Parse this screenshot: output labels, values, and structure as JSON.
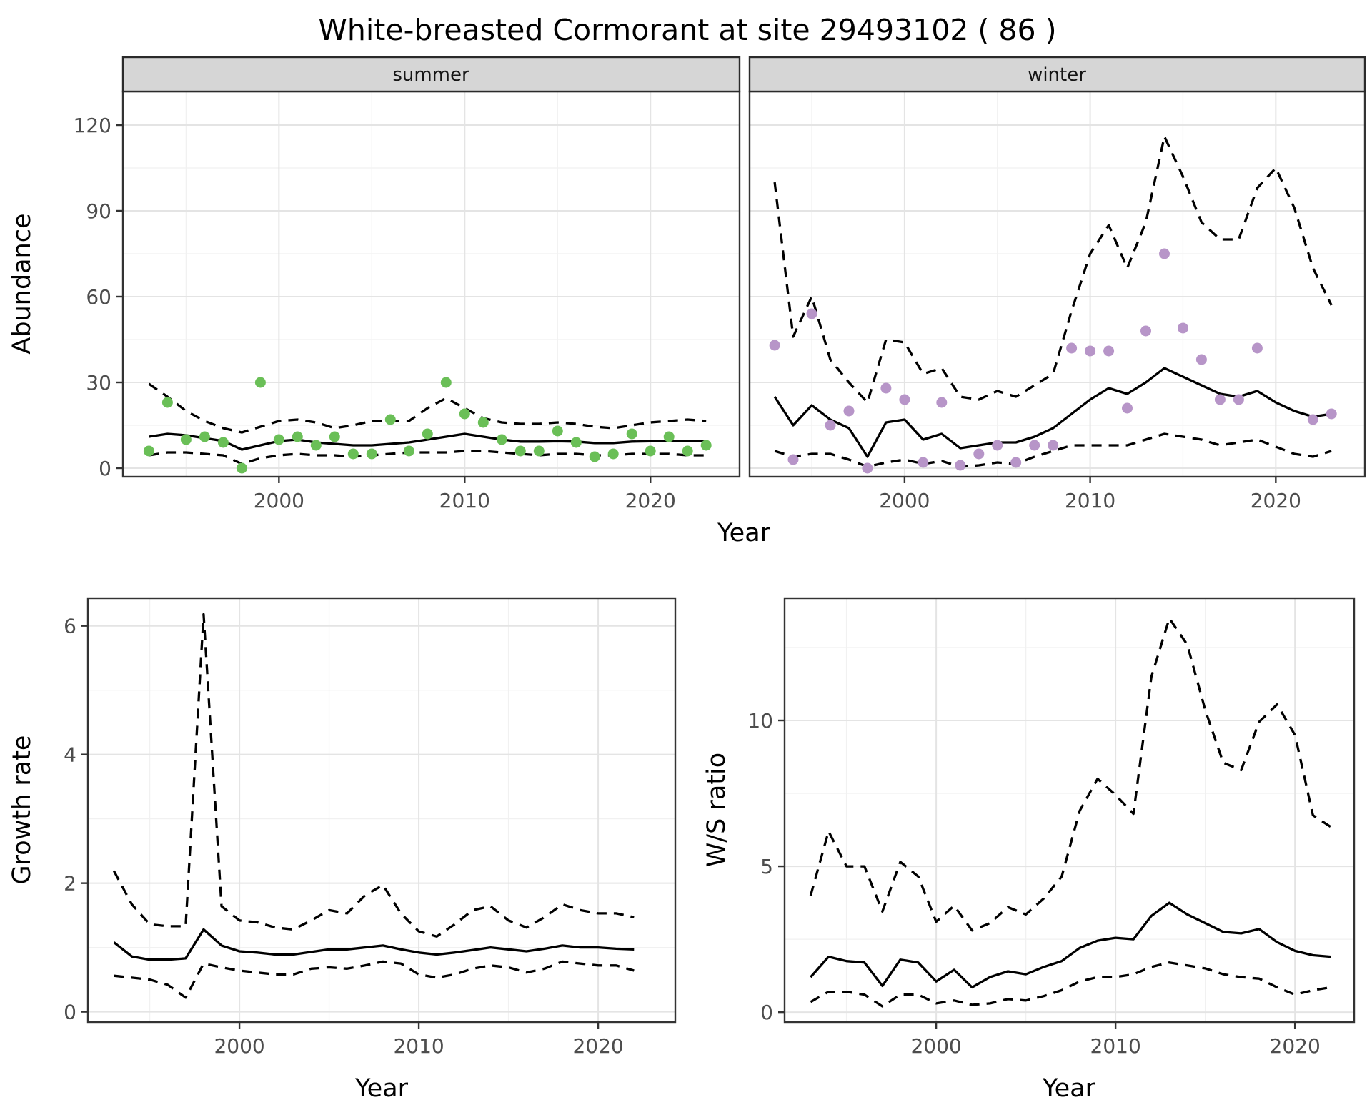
{
  "title": "White-breasted Cormorant at site 29493102 ( 86 )",
  "axes": {
    "abundance": "Abundance",
    "year": "Year"
  },
  "colors": {
    "summer_point": "#6abf57",
    "winter_point": "#b795c8",
    "line": "#000000",
    "strip_bg": "#d6d6d6",
    "strip_border": "#2a2a2a",
    "panel_border": "#333333",
    "grid_major": "#e4e4e4",
    "grid_minor": "#f1f1f1",
    "axis_text": "#4d4d4d",
    "tick_mark": "#333333"
  },
  "chart_data": [
    {
      "id": "abundance-summer",
      "type": "line+scatter",
      "facet_label": "summer",
      "xlabel": "Year",
      "ylabel": "Abundance",
      "x_ticks": [
        2000,
        2010,
        2020
      ],
      "x_minor": [
        1995,
        2005,
        2015
      ],
      "y_ticks": [
        0,
        30,
        60,
        90,
        120
      ],
      "y_minor": [
        15,
        45,
        75,
        105
      ],
      "xlim": [
        1991.6,
        2024.8
      ],
      "ylim": [
        -3,
        131.75
      ],
      "x": [
        1993,
        1994,
        1995,
        1996,
        1997,
        1998,
        1999,
        2000,
        2001,
        2002,
        2003,
        2004,
        2005,
        2006,
        2007,
        2008,
        2009,
        2010,
        2011,
        2012,
        2013,
        2014,
        2015,
        2016,
        2017,
        2018,
        2019,
        2020,
        2021,
        2022,
        2023
      ],
      "series": [
        {
          "name": "observed",
          "kind": "points",
          "color": "#6abf57",
          "values": [
            6,
            23,
            10,
            11,
            9,
            0,
            30,
            10,
            11,
            8,
            11,
            5,
            5,
            17,
            6,
            12,
            30,
            19,
            16,
            10,
            6,
            6,
            13,
            9,
            4,
            5,
            12,
            6,
            11,
            6,
            8
          ]
        },
        {
          "name": "fitted",
          "kind": "line",
          "style": "solid",
          "values": [
            11,
            12,
            11.5,
            10.5,
            9.5,
            6.5,
            8,
            9.5,
            10,
            9,
            8.5,
            8,
            8,
            8.5,
            9,
            10,
            11,
            12,
            11,
            10,
            9.3,
            9.3,
            9.4,
            9.3,
            8.8,
            8.8,
            9.3,
            9.4,
            9.5,
            9.5,
            9.4
          ]
        },
        {
          "name": "upper_ci",
          "kind": "line",
          "style": "dashed",
          "values": [
            29.5,
            25,
            20,
            16.5,
            14,
            12.5,
            14.5,
            16.5,
            17,
            16,
            14,
            15,
            16.5,
            16.5,
            16.5,
            21,
            24.5,
            21,
            17.5,
            16,
            15.5,
            15.5,
            16,
            15.5,
            14.5,
            14,
            15,
            16,
            16.5,
            17,
            16.5
          ]
        },
        {
          "name": "lower_ci",
          "kind": "line",
          "style": "dashed",
          "values": [
            4.5,
            5.5,
            5.5,
            5,
            4.5,
            1.5,
            3.5,
            4.5,
            5,
            4.5,
            4.5,
            4,
            4.5,
            5,
            5.5,
            5.5,
            5.5,
            6,
            6,
            5.5,
            5,
            4.5,
            5,
            5,
            4.5,
            4.5,
            5,
            5,
            5,
            4.5,
            4.5
          ]
        }
      ]
    },
    {
      "id": "abundance-winter",
      "type": "line+scatter",
      "facet_label": "winter",
      "xlabel": "Year",
      "ylabel": "Abundance",
      "x_ticks": [
        2000,
        2010,
        2020
      ],
      "x_minor": [
        1995,
        2005,
        2015
      ],
      "y_ticks": [
        0,
        30,
        60,
        90,
        120
      ],
      "y_minor": [
        15,
        45,
        75,
        105
      ],
      "xlim": [
        1991.65,
        2024.8
      ],
      "ylim": [
        -3,
        131.75
      ],
      "x": [
        1993,
        1994,
        1995,
        1996,
        1997,
        1998,
        1999,
        2000,
        2001,
        2002,
        2003,
        2004,
        2005,
        2006,
        2007,
        2008,
        2009,
        2010,
        2011,
        2012,
        2013,
        2014,
        2015,
        2016,
        2017,
        2018,
        2019,
        2020,
        2021,
        2022,
        2023
      ],
      "series": [
        {
          "name": "observed",
          "kind": "points",
          "color": "#b795c8",
          "values": [
            43,
            3,
            54,
            15,
            20,
            0,
            28,
            24,
            2,
            23,
            1,
            5,
            8,
            2,
            8,
            8,
            42,
            41,
            41,
            21,
            48,
            75,
            49,
            38,
            24,
            24,
            42,
            null,
            null,
            17,
            19
          ]
        },
        {
          "name": "fitted",
          "kind": "line",
          "style": "solid",
          "values": [
            25,
            15,
            22,
            17,
            14,
            4,
            16,
            17,
            10,
            12,
            7,
            8,
            9,
            9,
            11,
            14,
            19,
            24,
            28,
            26,
            30,
            35,
            32,
            29,
            26,
            25,
            27,
            23,
            20,
            18,
            19
          ]
        },
        {
          "name": "upper_ci",
          "kind": "line",
          "style": "dashed",
          "values": [
            100,
            46,
            60,
            38,
            30,
            23,
            45,
            44,
            33,
            35,
            25,
            24,
            27,
            25,
            29,
            33,
            55,
            75,
            85,
            70,
            86,
            116,
            102,
            86,
            80,
            80,
            98,
            105,
            91,
            70,
            57
          ]
        },
        {
          "name": "lower_ci",
          "kind": "line",
          "style": "dashed",
          "values": [
            6,
            4,
            5,
            5,
            3,
            0.5,
            2,
            3,
            1.5,
            2.5,
            0.5,
            1,
            2,
            1.5,
            4,
            6,
            8,
            8,
            8,
            8,
            10,
            12,
            11,
            10,
            8,
            9,
            10,
            7.5,
            5,
            4,
            6
          ]
        }
      ]
    },
    {
      "id": "growth-rate",
      "type": "line",
      "facet_label": null,
      "xlabel": "Year",
      "ylabel": "Growth rate",
      "x_ticks": [
        2000,
        2010,
        2020
      ],
      "x_minor": [
        1995,
        2005,
        2015
      ],
      "y_ticks": [
        0,
        2,
        4,
        6
      ],
      "y_minor": [
        1,
        3,
        5
      ],
      "xlim": [
        1991.55,
        2024.3
      ],
      "ylim": [
        -0.16,
        6.43
      ],
      "x": [
        1993,
        1994,
        1995,
        1996,
        1997,
        1998,
        1999,
        2000,
        2001,
        2002,
        2003,
        2004,
        2005,
        2006,
        2007,
        2008,
        2009,
        2010,
        2011,
        2012,
        2013,
        2014,
        2015,
        2016,
        2017,
        2018,
        2019,
        2020,
        2021,
        2022
      ],
      "series": [
        {
          "name": "growth_rate",
          "kind": "line",
          "style": "solid",
          "values": [
            1.08,
            0.86,
            0.81,
            0.81,
            0.83,
            1.28,
            1.03,
            0.94,
            0.92,
            0.89,
            0.89,
            0.93,
            0.97,
            0.97,
            1.0,
            1.03,
            0.97,
            0.92,
            0.89,
            0.92,
            0.96,
            1.0,
            0.97,
            0.94,
            0.98,
            1.03,
            1.0,
            1.0,
            0.98,
            0.97
          ]
        },
        {
          "name": "upper_ci",
          "kind": "line",
          "style": "dashed",
          "values": [
            2.19,
            1.67,
            1.36,
            1.33,
            1.33,
            6.18,
            1.64,
            1.42,
            1.39,
            1.31,
            1.28,
            1.42,
            1.58,
            1.53,
            1.81,
            1.97,
            1.53,
            1.25,
            1.17,
            1.36,
            1.58,
            1.64,
            1.42,
            1.31,
            1.47,
            1.67,
            1.58,
            1.53,
            1.53,
            1.47
          ]
        },
        {
          "name": "lower_ci",
          "kind": "line",
          "style": "dashed",
          "values": [
            0.56,
            0.53,
            0.5,
            0.42,
            0.22,
            0.75,
            0.69,
            0.64,
            0.61,
            0.58,
            0.58,
            0.67,
            0.69,
            0.67,
            0.72,
            0.78,
            0.75,
            0.58,
            0.53,
            0.58,
            0.67,
            0.72,
            0.69,
            0.61,
            0.67,
            0.78,
            0.75,
            0.72,
            0.72,
            0.64
          ]
        }
      ]
    },
    {
      "id": "ws-ratio",
      "type": "line",
      "facet_label": null,
      "xlabel": "Year",
      "ylabel": "W/S ratio",
      "x_ticks": [
        2000,
        2010,
        2020
      ],
      "x_minor": [
        1995,
        2005,
        2015
      ],
      "y_ticks": [
        0,
        5,
        10
      ],
      "y_minor": [
        2.5,
        7.5,
        12.5
      ],
      "xlim": [
        1991.55,
        2023.3
      ],
      "ylim": [
        -0.34,
        14.19
      ],
      "x": [
        1993,
        1994,
        1995,
        1996,
        1997,
        1998,
        1999,
        2000,
        2001,
        2002,
        2003,
        2004,
        2005,
        2006,
        2007,
        2008,
        2009,
        2010,
        2011,
        2012,
        2013,
        2014,
        2015,
        2016,
        2017,
        2018,
        2019,
        2020,
        2021,
        2022
      ],
      "series": [
        {
          "name": "ws_ratio",
          "kind": "line",
          "style": "solid",
          "values": [
            1.2,
            1.9,
            1.75,
            1.7,
            0.9,
            1.8,
            1.7,
            1.05,
            1.45,
            0.85,
            1.2,
            1.4,
            1.3,
            1.55,
            1.75,
            2.2,
            2.45,
            2.55,
            2.5,
            3.3,
            3.75,
            3.35,
            3.05,
            2.75,
            2.7,
            2.85,
            2.4,
            2.1,
            1.95,
            1.9
          ]
        },
        {
          "name": "upper_ci",
          "kind": "line",
          "style": "dashed",
          "values": [
            4.0,
            6.2,
            5.0,
            5.0,
            3.45,
            5.15,
            4.65,
            3.1,
            3.65,
            2.8,
            3.05,
            3.6,
            3.35,
            3.9,
            4.65,
            6.9,
            8.0,
            7.45,
            6.8,
            11.5,
            13.5,
            12.6,
            10.35,
            8.55,
            8.3,
            9.95,
            10.55,
            9.5,
            6.75,
            6.35
          ]
        },
        {
          "name": "lower_ci",
          "kind": "line",
          "style": "dashed",
          "values": [
            0.35,
            0.7,
            0.7,
            0.6,
            0.2,
            0.6,
            0.6,
            0.3,
            0.4,
            0.25,
            0.3,
            0.45,
            0.4,
            0.55,
            0.75,
            1.05,
            1.2,
            1.2,
            1.3,
            1.55,
            1.7,
            1.6,
            1.5,
            1.3,
            1.2,
            1.15,
            0.85,
            0.6,
            0.75,
            0.85
          ]
        }
      ]
    }
  ]
}
